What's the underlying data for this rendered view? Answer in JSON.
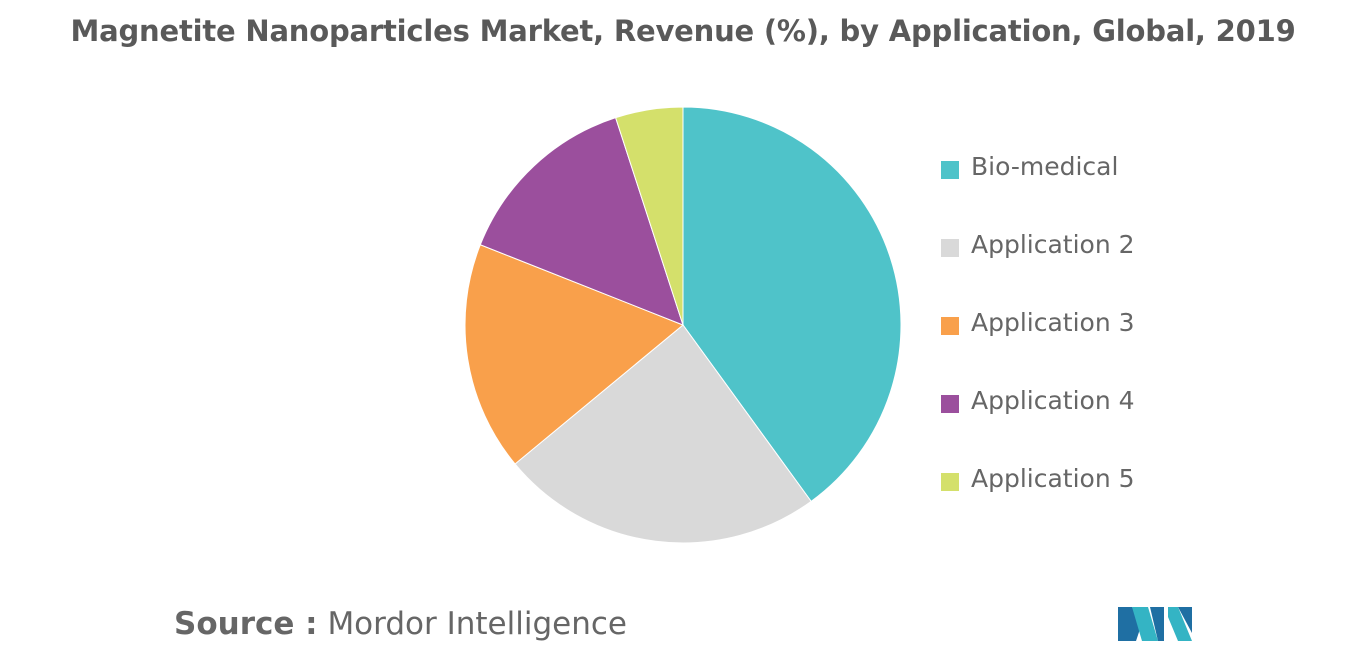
{
  "chart_data": {
    "type": "pie",
    "title": "Magnetite Nanoparticles Market, Revenue (%), by Application, Global, 2019",
    "categories": [
      "Bio-medical",
      "Application 2",
      "Application 3",
      "Application 4",
      "Application 5"
    ],
    "values": [
      40,
      24,
      17,
      14,
      5
    ],
    "colors": [
      "#4fc3c9",
      "#d9d9d9",
      "#f9a04b",
      "#9b4f9d",
      "#d4e06b"
    ],
    "legend_position": "right",
    "start_angle": "top, clockwise"
  },
  "source": {
    "prefix": "Source :",
    "name": "Mordor Intelligence"
  },
  "logo": {
    "icon": "mordor-intelligence-logo-icon",
    "colors": [
      "#1f6fa3",
      "#34b4c4"
    ]
  }
}
